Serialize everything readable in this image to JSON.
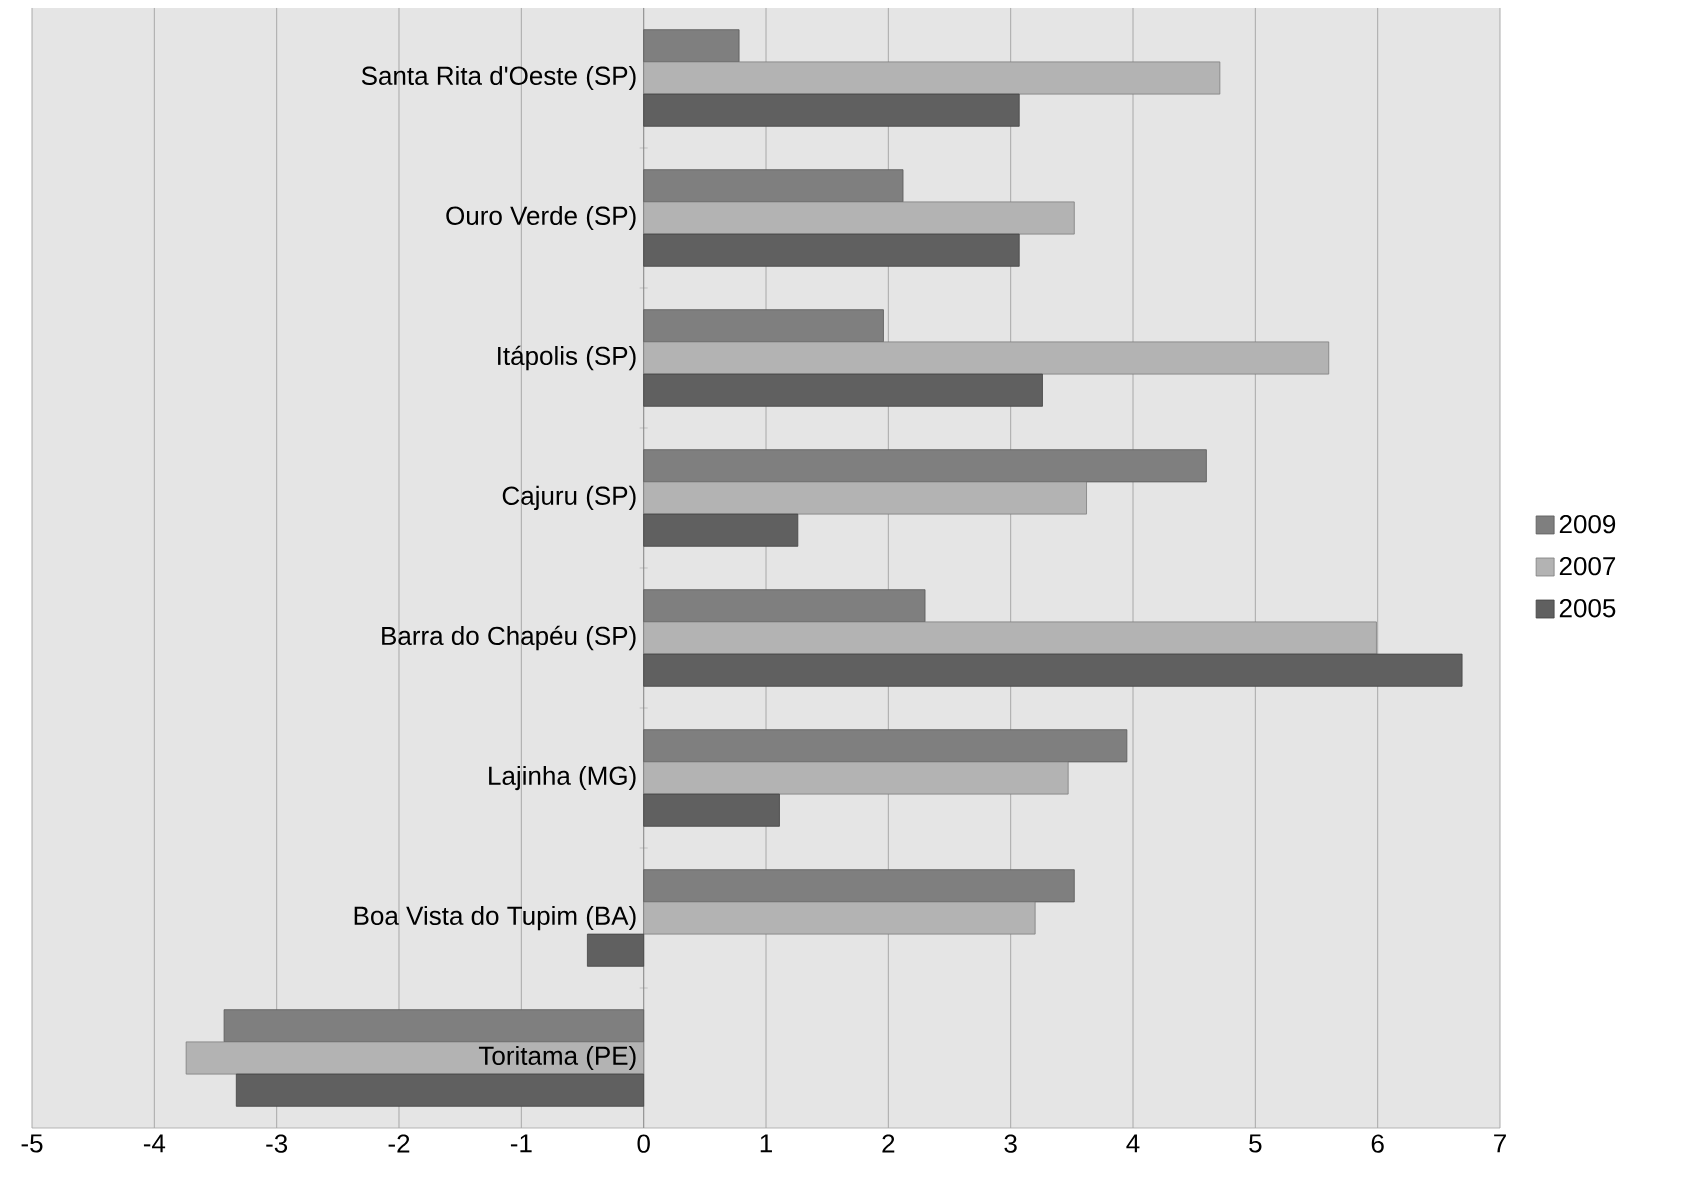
{
  "chart_data": {
    "type": "bar",
    "orientation": "horizontal",
    "categories": [
      "Santa Rita d'Oeste (SP)",
      "Ouro Verde (SP)",
      "Itápolis (SP)",
      "Cajuru (SP)",
      "Barra do Chapéu (SP)",
      "Lajinha (MG)",
      "Boa Vista do Tupim (BA)",
      "Toritama (PE)"
    ],
    "series": [
      {
        "name": "2009",
        "color": "#7f7f7f",
        "values": [
          0.78,
          2.12,
          1.96,
          4.6,
          2.3,
          3.95,
          3.52,
          -3.43
        ]
      },
      {
        "name": "2007",
        "color": "#b3b3b3",
        "values": [
          4.71,
          3.52,
          5.6,
          3.62,
          5.99,
          3.47,
          3.2,
          -3.74
        ]
      },
      {
        "name": "2005",
        "color": "#606060",
        "values": [
          3.07,
          3.07,
          3.26,
          1.26,
          6.69,
          1.11,
          -0.46,
          -3.33
        ]
      }
    ],
    "xlim": [
      -5,
      7
    ],
    "xticks": [
      -5,
      -4,
      -3,
      -2,
      -1,
      0,
      1,
      2,
      3,
      4,
      5,
      6,
      7
    ],
    "grid": "x",
    "legend": "right"
  }
}
